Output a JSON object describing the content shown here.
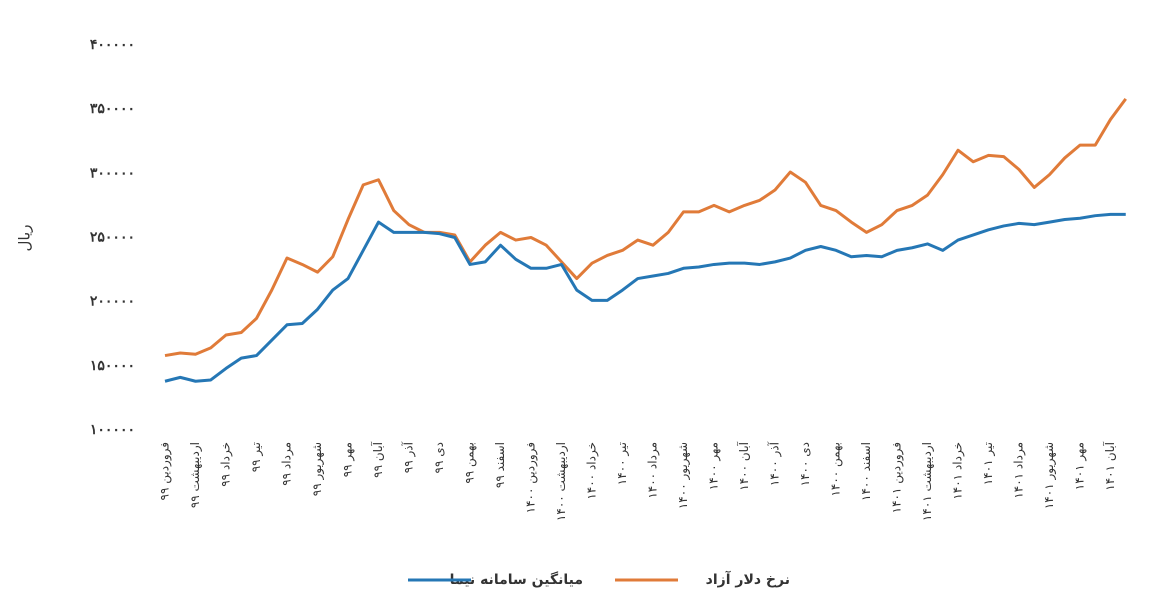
{
  "chart_data": {
    "type": "line",
    "y_label": "ریال",
    "categories": [
      "فروردین ۹۹",
      null,
      "اردیبهشت ۹۹",
      null,
      "خرداد ۹۹",
      null,
      "تیر ۹۹",
      null,
      "مرداد ۹۹",
      null,
      "شهریور ۹۹",
      null,
      "مهر ۹۹",
      null,
      "آبان ۹۹",
      null,
      "آذر ۹۹",
      null,
      "دی ۹۹",
      null,
      "بهمن ۹۹",
      null,
      "اسفند ۹۹",
      null,
      "فروردین ۱۴۰۰",
      null,
      "اردیبهشت ۱۴۰۰",
      null,
      "خرداد ۱۴۰۰",
      null,
      "تیر ۱۴۰۰",
      null,
      "مرداد ۱۴۰۰",
      null,
      "شهریور ۱۴۰۰",
      null,
      "مهر ۱۴۰۰",
      null,
      "آبان ۱۴۰۰",
      null,
      "آذر ۱۴۰۰",
      null,
      "دی ۱۴۰۰",
      null,
      "بهمن ۱۴۰۰",
      null,
      "اسفند ۱۴۰۰",
      null,
      "فروردین ۱۴۰۱",
      null,
      "اردیبهشت ۱۴۰۱",
      null,
      "خرداد ۱۴۰۱",
      null,
      "تیر ۱۴۰۱",
      null,
      "مرداد ۱۴۰۱",
      null,
      "شهریور ۱۴۰۱",
      null,
      "مهر ۱۴۰۱",
      null,
      "آبان ۱۴۰۱",
      null
    ],
    "series": [
      {
        "name": "نرخ دلار آزاد",
        "color": "#e07b39",
        "values": [
          158000,
          160000,
          159000,
          164000,
          174000,
          176000,
          187000,
          209000,
          234000,
          229000,
          223000,
          235000,
          264000,
          291000,
          295000,
          271000,
          260000,
          254000,
          254000,
          252000,
          231000,
          244000,
          254000,
          248000,
          250000,
          244000,
          231000,
          218000,
          230000,
          236000,
          240000,
          248000,
          244000,
          254000,
          270000,
          270000,
          275000,
          270000,
          275000,
          279000,
          287000,
          301000,
          293000,
          275000,
          271000,
          262000,
          254000,
          260000,
          271000,
          275000,
          283000,
          299000,
          318000,
          309000,
          314000,
          313000,
          303000,
          289000,
          299000,
          312000,
          322000,
          322000,
          342000,
          358000
        ]
      },
      {
        "name": "میانگین سامانه نیما",
        "color": "#2577b5",
        "values": [
          138000,
          141000,
          138000,
          139000,
          148000,
          156000,
          158000,
          170000,
          182000,
          183000,
          194000,
          209000,
          218000,
          240000,
          262000,
          254000,
          254000,
          254000,
          253000,
          250000,
          229000,
          231000,
          244000,
          233000,
          226000,
          226000,
          229000,
          209000,
          201000,
          201000,
          209000,
          218000,
          220000,
          222000,
          226000,
          227000,
          229000,
          230000,
          230000,
          229000,
          231000,
          234000,
          240000,
          243000,
          240000,
          235000,
          236000,
          235000,
          240000,
          242000,
          245000,
          240000,
          248000,
          252000,
          256000,
          259000,
          261000,
          260000,
          262000,
          264000,
          265000,
          267000,
          268000,
          268000
        ]
      }
    ],
    "ylim": [
      100000,
      400000
    ],
    "yticks": [
      {
        "value": 100000,
        "label": "۱۰۰۰۰۰"
      },
      {
        "value": 150000,
        "label": "۱۵۰۰۰۰"
      },
      {
        "value": 200000,
        "label": "۲۰۰۰۰۰"
      },
      {
        "value": 250000,
        "label": "۲۵۰۰۰۰"
      },
      {
        "value": 300000,
        "label": "۳۰۰۰۰۰"
      },
      {
        "value": 350000,
        "label": "۳۵۰۰۰۰"
      },
      {
        "value": 400000,
        "label": "۴۰۰۰۰۰"
      }
    ],
    "grid": false
  }
}
